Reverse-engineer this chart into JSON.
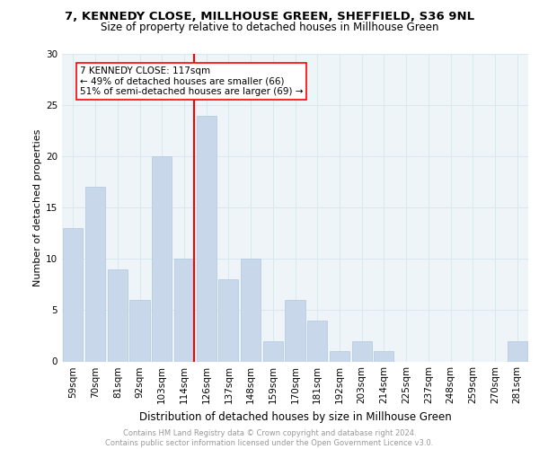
{
  "title1": "7, KENNEDY CLOSE, MILLHOUSE GREEN, SHEFFIELD, S36 9NL",
  "title2": "Size of property relative to detached houses in Millhouse Green",
  "xlabel": "Distribution of detached houses by size in Millhouse Green",
  "ylabel": "Number of detached properties",
  "categories": [
    "59sqm",
    "70sqm",
    "81sqm",
    "92sqm",
    "103sqm",
    "114sqm",
    "126sqm",
    "137sqm",
    "148sqm",
    "159sqm",
    "170sqm",
    "181sqm",
    "192sqm",
    "203sqm",
    "214sqm",
    "225sqm",
    "237sqm",
    "248sqm",
    "259sqm",
    "270sqm",
    "281sqm"
  ],
  "values": [
    13,
    17,
    9,
    6,
    20,
    10,
    24,
    8,
    10,
    2,
    6,
    4,
    1,
    2,
    1,
    0,
    0,
    0,
    0,
    0,
    2
  ],
  "bar_color": "#c8d8ea",
  "bar_edge_color": "#b0c8de",
  "highlight_line_index": 5,
  "annotation_text": "7 KENNEDY CLOSE: 117sqm\n← 49% of detached houses are smaller (66)\n51% of semi-detached houses are larger (69) →",
  "annotation_box_color": "white",
  "annotation_box_edge_color": "red",
  "red_line_color": "red",
  "ylim": [
    0,
    30
  ],
  "yticks": [
    0,
    5,
    10,
    15,
    20,
    25,
    30
  ],
  "footer": "Contains HM Land Registry data © Crown copyright and database right 2024.\nContains public sector information licensed under the Open Government Licence v3.0.",
  "footer_color": "#999999",
  "grid_color": "#d8e8f0",
  "background_color": "#eef4f8",
  "fig_background": "#ffffff",
  "title1_fontsize": 9.5,
  "title2_fontsize": 8.5,
  "ylabel_fontsize": 8,
  "xlabel_fontsize": 8.5,
  "footer_fontsize": 6.0,
  "annotation_fontsize": 7.5,
  "tick_fontsize": 7.5
}
